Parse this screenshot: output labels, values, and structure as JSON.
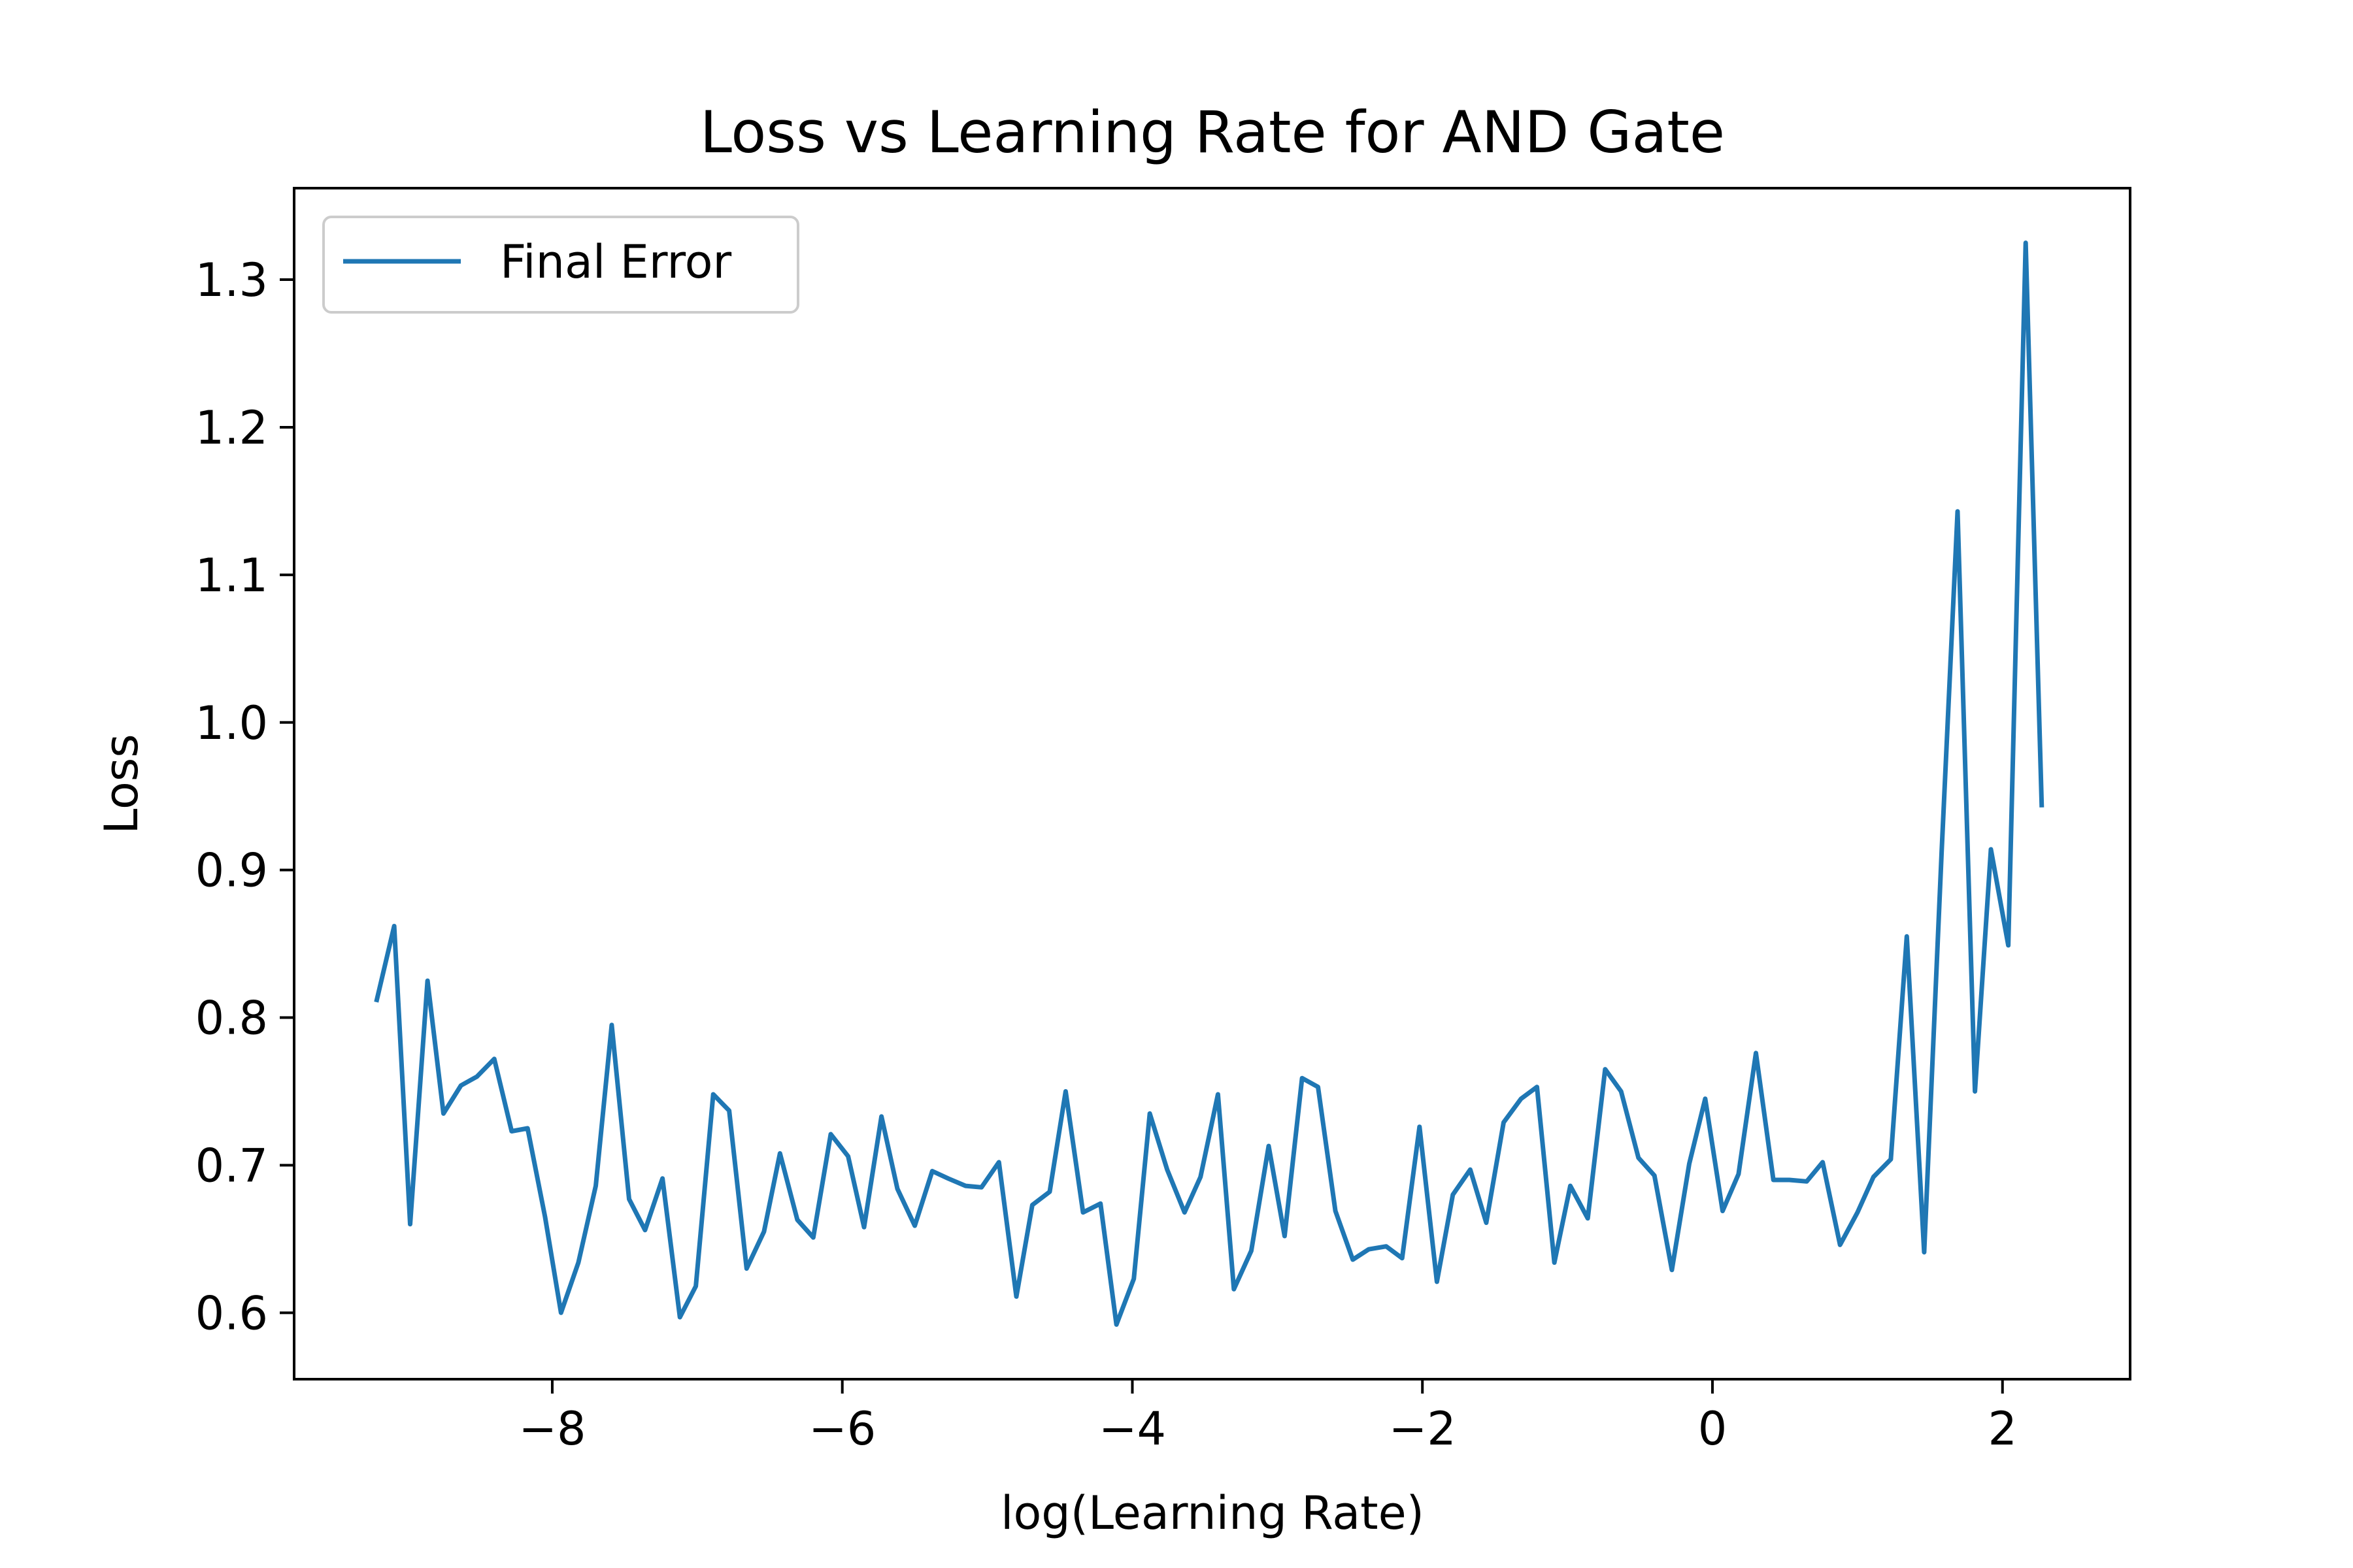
{
  "chart_data": {
    "type": "line",
    "title": "Loss vs Learning Rate for AND Gate",
    "xlabel": "log(Learning Rate)",
    "ylabel": "Loss",
    "xlim": [
      -9.78,
      2.88
    ],
    "ylim": [
      0.555,
      1.362
    ],
    "x_ticks": [
      -8,
      -6,
      -4,
      -2,
      0,
      2
    ],
    "x_tick_labels": [
      "−8",
      "−6",
      "−4",
      "−2",
      "0",
      "2"
    ],
    "y_ticks": [
      0.6,
      0.7,
      0.8,
      0.9,
      1.0,
      1.1,
      1.2,
      1.3
    ],
    "y_tick_labels": [
      "0.6",
      "0.7",
      "0.8",
      "0.9",
      "1.0",
      "1.1",
      "1.2",
      "1.3"
    ],
    "grid": false,
    "legend_position": "top-left",
    "series": [
      {
        "name": "Final Error",
        "color": "#1f77b4",
        "x": [
          -9.21,
          -9.09,
          -8.98,
          -8.86,
          -8.75,
          -8.63,
          -8.52,
          -8.4,
          -8.28,
          -8.17,
          -8.05,
          -7.94,
          -7.82,
          -7.7,
          -7.59,
          -7.47,
          -7.36,
          -7.24,
          -7.12,
          -7.01,
          -6.89,
          -6.78,
          -6.66,
          -6.54,
          -6.43,
          -6.31,
          -6.2,
          -6.08,
          -5.96,
          -5.85,
          -5.73,
          -5.62,
          -5.5,
          -5.38,
          -5.27,
          -5.15,
          -5.04,
          -4.92,
          -4.8,
          -4.69,
          -4.57,
          -4.46,
          -4.34,
          -4.22,
          -4.11,
          -3.99,
          -3.88,
          -3.76,
          -3.64,
          -3.53,
          -3.41,
          -3.3,
          -3.18,
          -3.06,
          -2.95,
          -2.83,
          -2.72,
          -2.6,
          -2.48,
          -2.37,
          -2.25,
          -2.14,
          -2.02,
          -1.9,
          -1.79,
          -1.67,
          -1.56,
          -1.44,
          -1.32,
          -1.21,
          -1.09,
          -0.98,
          -0.86,
          -0.74,
          -0.63,
          -0.51,
          -0.4,
          -0.28,
          -0.16,
          -0.05,
          0.07,
          0.18,
          0.3,
          0.42,
          0.53,
          0.65,
          0.76,
          0.88,
          1.0,
          1.11,
          1.23,
          1.34,
          1.46,
          1.58,
          1.69,
          1.81,
          1.92,
          2.04,
          2.16,
          2.27
        ],
        "y": [
          0.812,
          0.862,
          0.66,
          0.825,
          0.735,
          0.754,
          0.76,
          0.772,
          0.723,
          0.725,
          0.665,
          0.6,
          0.634,
          0.686,
          0.795,
          0.677,
          0.656,
          0.691,
          0.597,
          0.618,
          0.748,
          0.737,
          0.63,
          0.655,
          0.708,
          0.663,
          0.651,
          0.721,
          0.706,
          0.658,
          0.733,
          0.684,
          0.659,
          0.696,
          0.691,
          0.686,
          0.685,
          0.702,
          0.611,
          0.673,
          0.682,
          0.75,
          0.668,
          0.674,
          0.592,
          0.623,
          0.735,
          0.697,
          0.668,
          0.692,
          0.748,
          0.616,
          0.642,
          0.713,
          0.652,
          0.759,
          0.753,
          0.669,
          0.636,
          0.643,
          0.645,
          0.637,
          0.726,
          0.621,
          0.68,
          0.697,
          0.661,
          0.729,
          0.745,
          0.753,
          0.634,
          0.686,
          0.664,
          0.765,
          0.75,
          0.705,
          0.693,
          0.629,
          0.701,
          0.745,
          0.669,
          0.694,
          0.776,
          0.69,
          0.69,
          0.689,
          0.702,
          0.646,
          0.668,
          0.692,
          0.704,
          0.855,
          0.641,
          0.912,
          1.143,
          0.75,
          0.914,
          0.849,
          1.325,
          0.944
        ]
      }
    ]
  }
}
